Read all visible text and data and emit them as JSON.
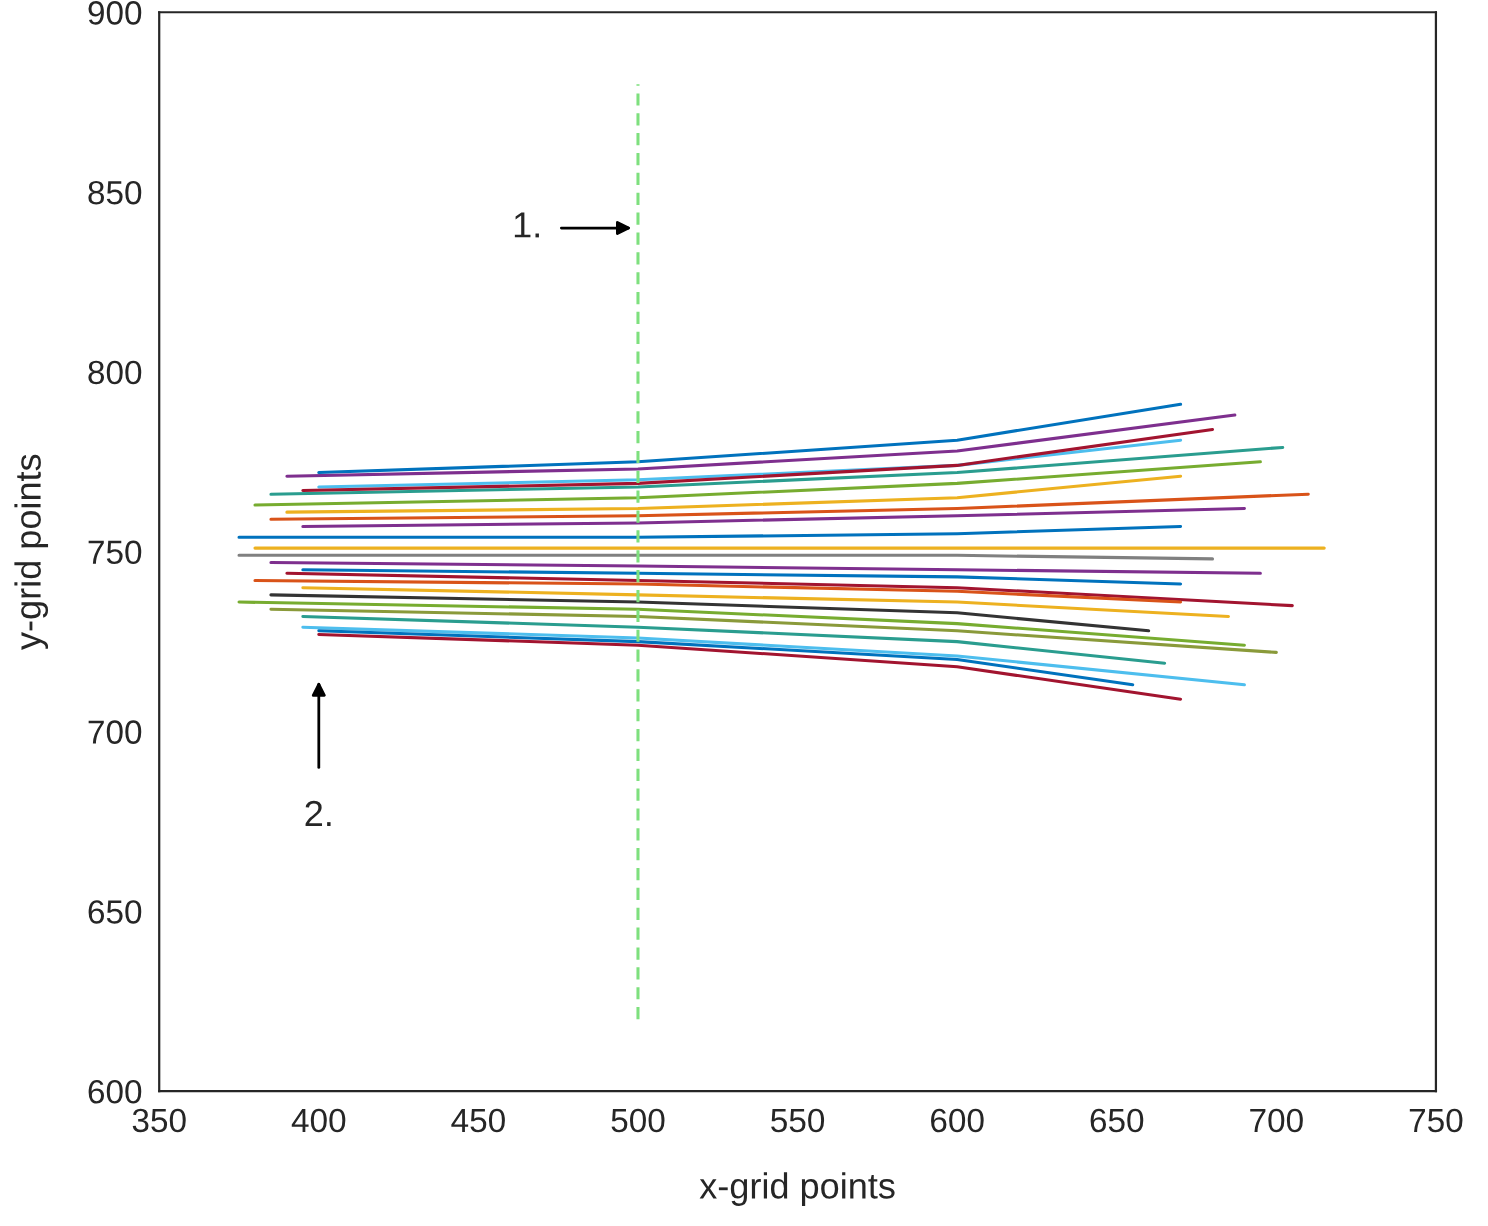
{
  "chart_data": {
    "type": "line",
    "xlabel": "x-grid points",
    "ylabel": "y-grid points",
    "xlim": [
      350,
      750
    ],
    "xticks": [
      350,
      400,
      450,
      500,
      550,
      600,
      650,
      700,
      750
    ],
    "ylim": [
      600,
      900
    ],
    "yticks": [
      600,
      650,
      700,
      750,
      800,
      850,
      900
    ],
    "grid": false,
    "legend": false,
    "line_style": "solid",
    "annotations": [
      "1.",
      "2."
    ],
    "series": [
      {
        "color": "#0072bd",
        "x": [
          400,
          500,
          600,
          670
        ],
        "values": [
          772,
          775,
          781,
          791
        ]
      },
      {
        "color": "#7e2f8e",
        "x": [
          390,
          500,
          600,
          687
        ],
        "values": [
          771,
          773,
          778,
          788
        ]
      },
      {
        "color": "#4dbeee",
        "x": [
          400,
          500,
          600,
          670
        ],
        "values": [
          768,
          770,
          774,
          781
        ]
      },
      {
        "color": "#2a9d8f",
        "x": [
          385,
          500,
          600,
          702
        ],
        "values": [
          766,
          768,
          772,
          779
        ]
      },
      {
        "color": "#a2142f",
        "x": [
          395,
          500,
          600,
          680
        ],
        "values": [
          767,
          769,
          774,
          784
        ]
      },
      {
        "color": "#77ac30",
        "x": [
          380,
          500,
          600,
          695
        ],
        "values": [
          763,
          765,
          769,
          775
        ]
      },
      {
        "color": "#edb120",
        "x": [
          390,
          500,
          600,
          670
        ],
        "values": [
          761,
          762,
          765,
          771
        ]
      },
      {
        "color": "#d95319",
        "x": [
          385,
          500,
          600,
          710
        ],
        "values": [
          759,
          760,
          762,
          766
        ]
      },
      {
        "color": "#7e2f8e",
        "x": [
          395,
          500,
          600,
          690
        ],
        "values": [
          757,
          758,
          760,
          762
        ]
      },
      {
        "color": "#0072bd",
        "x": [
          375,
          500,
          600,
          670
        ],
        "values": [
          754,
          754,
          755,
          757
        ]
      },
      {
        "color": "#edb120",
        "x": [
          380,
          500,
          600,
          715
        ],
        "values": [
          751,
          751,
          751,
          751
        ]
      },
      {
        "color": "#808080",
        "x": [
          375,
          500,
          600,
          680
        ],
        "values": [
          749,
          749,
          749,
          748
        ]
      },
      {
        "color": "#7e2f8e",
        "x": [
          385,
          500,
          600,
          695
        ],
        "values": [
          747,
          746,
          745,
          744
        ]
      },
      {
        "color": "#0072bd",
        "x": [
          395,
          500,
          600,
          670
        ],
        "values": [
          745,
          744,
          743,
          741
        ]
      },
      {
        "color": "#a2142f",
        "x": [
          390,
          500,
          600,
          705
        ],
        "values": [
          744,
          742,
          740,
          735
        ]
      },
      {
        "color": "#d95319",
        "x": [
          380,
          500,
          600,
          670
        ],
        "values": [
          742,
          741,
          739,
          736
        ]
      },
      {
        "color": "#edb120",
        "x": [
          395,
          500,
          600,
          685
        ],
        "values": [
          740,
          738,
          736,
          732
        ]
      },
      {
        "color": "#333333",
        "x": [
          385,
          500,
          600,
          660
        ],
        "values": [
          738,
          736,
          733,
          728
        ]
      },
      {
        "color": "#77ac30",
        "x": [
          375,
          500,
          600,
          690
        ],
        "values": [
          736,
          734,
          730,
          724
        ]
      },
      {
        "color": "#8a9a3a",
        "x": [
          385,
          500,
          600,
          700
        ],
        "values": [
          734,
          732,
          728,
          722
        ]
      },
      {
        "color": "#2a9d8f",
        "x": [
          395,
          500,
          600,
          665
        ],
        "values": [
          732,
          729,
          725,
          719
        ]
      },
      {
        "color": "#4dbeee",
        "x": [
          395,
          500,
          600,
          690
        ],
        "values": [
          729,
          726,
          721,
          713
        ]
      },
      {
        "color": "#0072bd",
        "x": [
          400,
          500,
          600,
          655
        ],
        "values": [
          728,
          725,
          720,
          713
        ]
      },
      {
        "color": "#a2142f",
        "x": [
          400,
          500,
          600,
          670
        ],
        "values": [
          727,
          724,
          718,
          709
        ]
      },
      {
        "color": "#7ee07e",
        "x": [
          500,
          500
        ],
        "values": [
          620,
          880
        ],
        "line_style": "dashed"
      }
    ]
  }
}
